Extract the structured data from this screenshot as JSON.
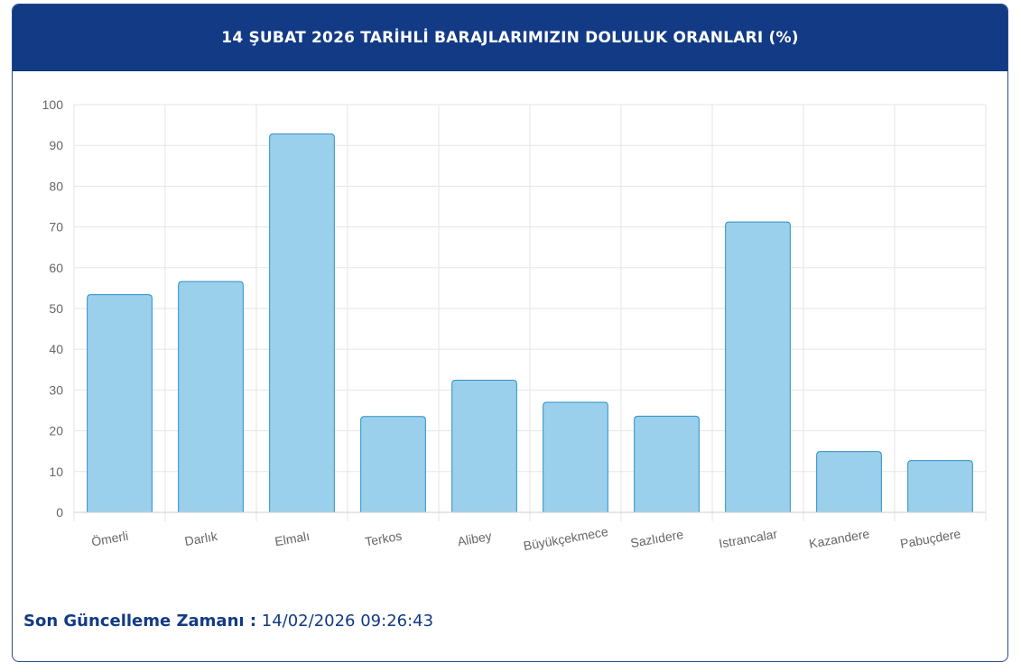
{
  "header": {
    "title": "14 ŞUBAT 2026 TARİHLİ BARAJLARIMIZIN DOLULUK ORANLARI (%)"
  },
  "footer": {
    "label": "Son Güncelleme Zamanı :",
    "value": "14/02/2026 09:26:43"
  },
  "colors": {
    "header_bg": "#123a85",
    "bar_fill": "#9bd0ec",
    "bar_stroke": "#2a8fc4",
    "grid": "#e5e5e5"
  },
  "chart_data": {
    "type": "bar",
    "categories": [
      "Ömerli",
      "Darlık",
      "Elmalı",
      "Terkos",
      "Alibey",
      "Büyükçekmece",
      "Sazlıdere",
      "Istrancalar",
      "Kazandere",
      "Pabuçdere"
    ],
    "values": [
      53.4,
      56.6,
      92.8,
      23.5,
      32.4,
      27.0,
      23.6,
      71.2,
      14.9,
      12.7
    ],
    "ylim": [
      0,
      100
    ],
    "yticks": [
      "0",
      "10",
      "20",
      "30",
      "40",
      "50",
      "60",
      "70",
      "80",
      "90",
      "100"
    ],
    "grid": true
  }
}
